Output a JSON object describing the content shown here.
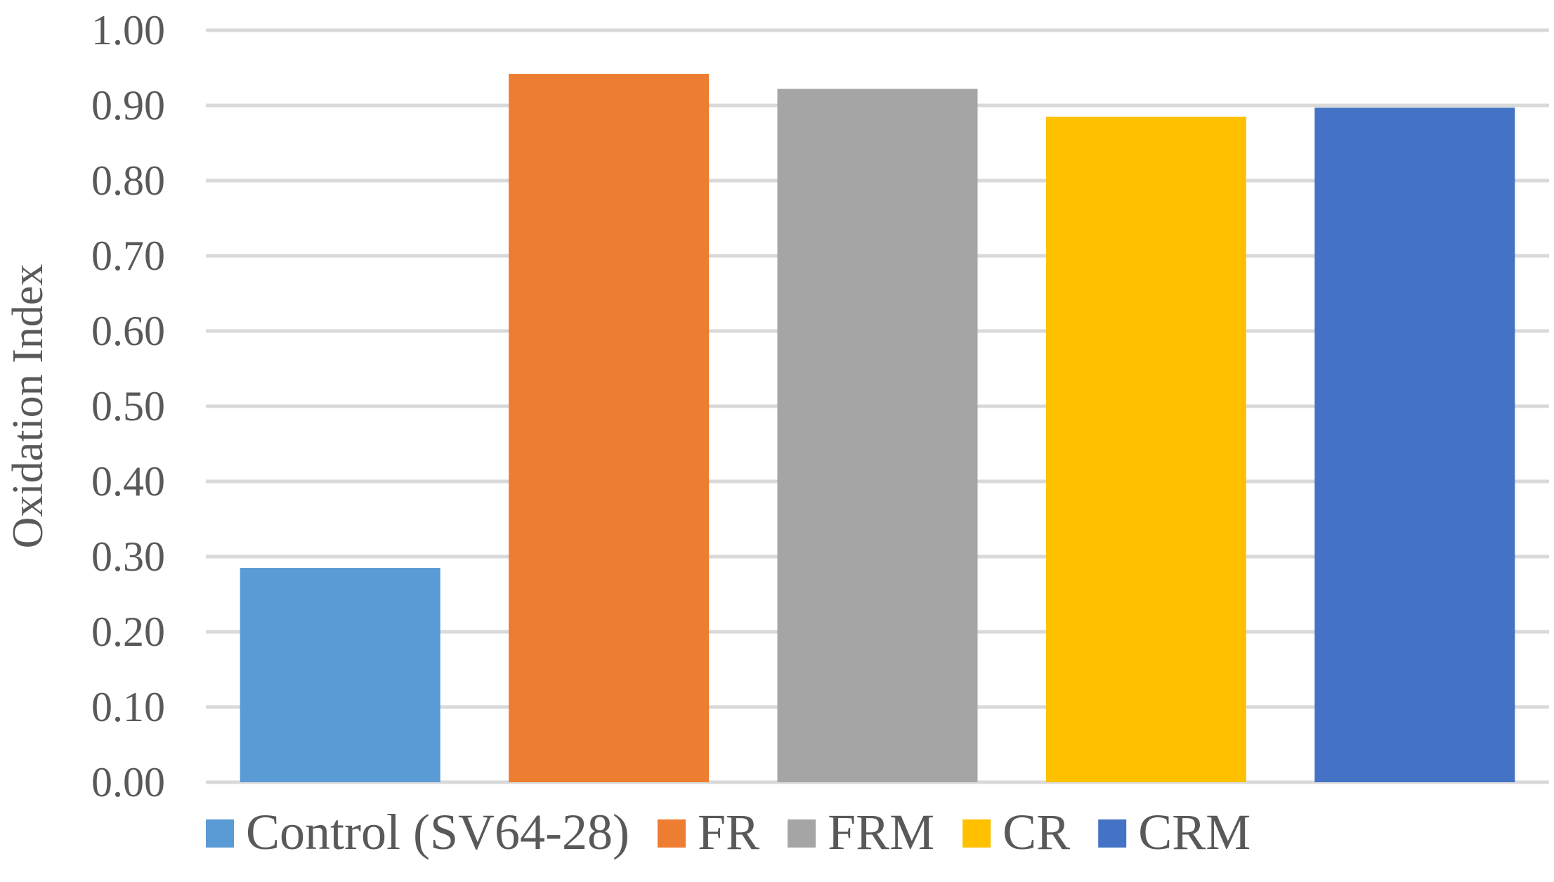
{
  "chart_data": {
    "type": "bar",
    "ylabel": "Oxidation Index",
    "ylim": [
      0,
      1.0
    ],
    "ytick_step": 0.1,
    "ytick_labels": [
      "0.00",
      "0.10",
      "0.20",
      "0.30",
      "0.40",
      "0.50",
      "0.60",
      "0.70",
      "0.80",
      "0.90",
      "1.00"
    ],
    "grid": true,
    "legend_position": "bottom",
    "series": [
      {
        "name": "Control (SV64-28)",
        "value": 0.285,
        "color": "#5b9bd5"
      },
      {
        "name": "FR",
        "value": 0.942,
        "color": "#ed7d31"
      },
      {
        "name": "FRM",
        "value": 0.922,
        "color": "#a5a5a5"
      },
      {
        "name": "CR",
        "value": 0.885,
        "color": "#ffc000"
      },
      {
        "name": "CRM",
        "value": 0.897,
        "color": "#4472c4"
      }
    ]
  }
}
